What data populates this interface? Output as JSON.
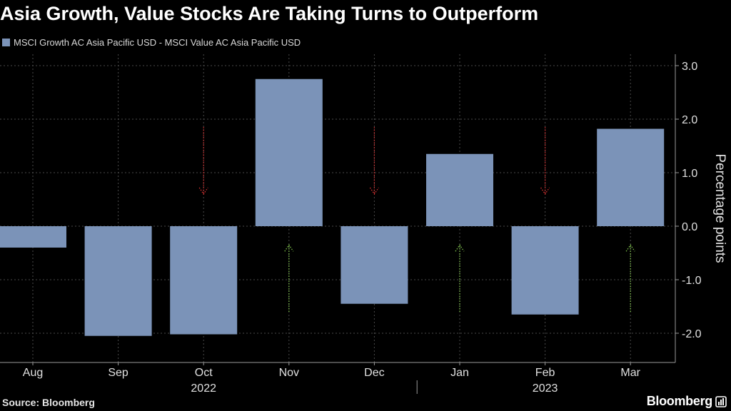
{
  "title": "Asia Growth, Value Stocks Are Taking Turns to Outperform",
  "legend_label": "MSCI Growth AC Asia Pacific USD - MSCI Value AC Asia Pacific USD",
  "source": "Source: Bloomberg",
  "brand": "Bloomberg",
  "colors": {
    "background": "#000000",
    "bar": "#7b93b8",
    "grid": "#4a4a4a",
    "down_arrow": "#d93030",
    "up_arrow": "#7fc34a",
    "axis_text": "#e0e0e0"
  },
  "chart_data": {
    "type": "bar",
    "title": "Asia Growth, Value Stocks Are Taking Turns to Outperform",
    "categories": [
      "Aug",
      "Sep",
      "Oct",
      "Nov",
      "Dec",
      "Jan",
      "Feb",
      "Mar"
    ],
    "year_labels": [
      {
        "label": "2022",
        "under": "Oct"
      },
      {
        "label": "2023",
        "under": "Feb"
      }
    ],
    "series": [
      {
        "name": "MSCI Growth AC Asia Pacific USD - MSCI Value AC Asia Pacific USD",
        "values": [
          -0.4,
          -2.05,
          -2.02,
          2.75,
          -1.45,
          1.35,
          -1.65,
          1.82
        ]
      }
    ],
    "ylabel": "Percentage points",
    "xlabel": "",
    "ylim": [
      -2.5,
      3.2
    ],
    "yticks": [
      3.0,
      2.0,
      1.0,
      0.0,
      -1.0,
      -2.0
    ],
    "ytick_labels": [
      "3.0",
      "2.0",
      "1.0",
      "0.0",
      "-1.0",
      "-2.0"
    ],
    "grid": true,
    "annotations": {
      "down_arrows_at": [
        "Oct",
        "Dec",
        "Feb"
      ],
      "up_arrows_at": [
        "Nov",
        "Jan",
        "Mar"
      ],
      "down_arrow_from": 1.85,
      "down_arrow_to": 0.6,
      "up_arrow_from": -1.6,
      "up_arrow_to": -0.35
    },
    "legend_position": "top-left"
  }
}
